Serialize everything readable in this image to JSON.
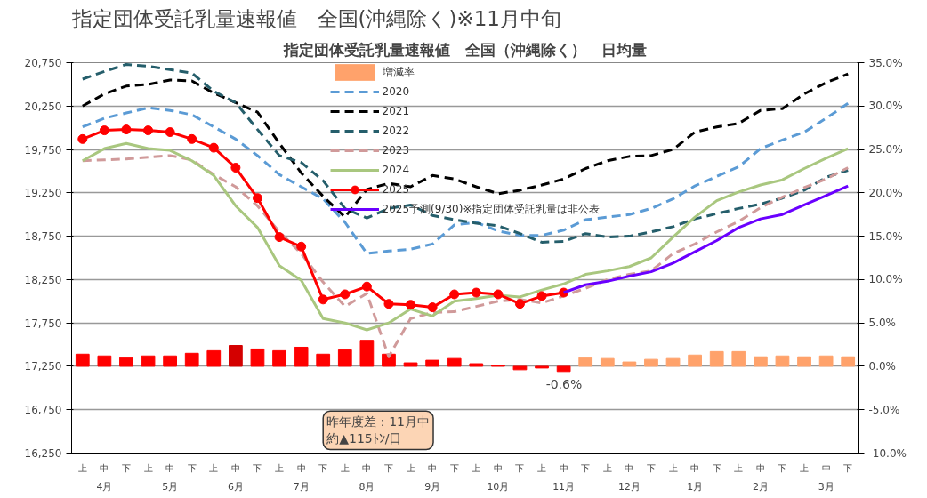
{
  "chart_data": {
    "type": "line",
    "title": "指定団体受託乳量速報値　全国(沖縄除く)※11月中旬",
    "subtitle": "指定団体受託乳量速報値　全国（沖縄除く）　日均量",
    "categories": [
      "上",
      "中",
      "下",
      "上",
      "中",
      "下",
      "上",
      "中",
      "下",
      "上",
      "中",
      "下",
      "上",
      "中",
      "下",
      "上",
      "中",
      "下",
      "上",
      "中",
      "下",
      "上",
      "中",
      "下",
      "上",
      "中",
      "下",
      "上",
      "中",
      "下",
      "上",
      "中",
      "下",
      "上",
      "中",
      "下"
    ],
    "ylim": [
      16250,
      20750
    ],
    "yticks": [
      {
        "value": 16250,
        "label": "16,250"
      },
      {
        "value": 16750,
        "label": "16,750"
      },
      {
        "value": 17250,
        "label": "17,250"
      },
      {
        "value": 17750,
        "label": "17,750"
      },
      {
        "value": 18250,
        "label": "18,250"
      },
      {
        "value": 18750,
        "label": "18,750"
      },
      {
        "value": 19250,
        "label": "19,250"
      },
      {
        "value": 19750,
        "label": "19,750"
      },
      {
        "value": 20250,
        "label": "20,250"
      },
      {
        "value": 20750,
        "label": "20,750"
      }
    ],
    "y2lim": [
      -10,
      35
    ],
    "y2ticks": [
      {
        "value": -10,
        "label": "-10.0%"
      },
      {
        "value": -5,
        "label": "-5.0%"
      },
      {
        "value": 0,
        "label": "0.0%"
      },
      {
        "value": 5,
        "label": "5.0%"
      },
      {
        "value": 10,
        "label": "10.0%"
      },
      {
        "value": 15,
        "label": "15.0%"
      },
      {
        "value": 20,
        "label": "20.0%"
      },
      {
        "value": 25,
        "label": "25.0%"
      },
      {
        "value": 30,
        "label": "30.0%"
      },
      {
        "value": 35,
        "label": "35.0%"
      }
    ],
    "grid": "y",
    "legend": "top",
    "series": [
      {
        "name": "増減率",
        "type": "bar",
        "axis": "y2",
        "color": "#ffa26b",
        "colors": [
          "#ff0000",
          "#ff0000",
          "#ff0000",
          "#ff0000",
          "#ff0000",
          "#ff0000",
          "#ff0000",
          "#d40000",
          "#ff0000",
          "#ff0000",
          "#ff0000",
          "#ff0000",
          "#ff0000",
          "#ff0000",
          "#ff0000",
          "#ff0000",
          "#ff0000",
          "#ff0000",
          "#ff0000",
          "#ff0000",
          "#ff0000",
          "#ff0000",
          "#ff0000",
          "#ffa26b",
          "#ffa26b",
          "#ffa26b",
          "#ffa26b",
          "#ffa26b",
          "#ffa26b",
          "#ffa26b",
          "#ffa26b",
          "#ffa26b",
          "#ffa26b",
          "#ffa26b",
          "#ffa26b",
          "#ffa26b"
        ],
        "values": [
          1.4,
          1.2,
          1.0,
          1.2,
          1.2,
          1.5,
          1.8,
          2.4,
          2.0,
          1.8,
          2.2,
          1.4,
          1.9,
          3.0,
          1.4,
          0.4,
          0.7,
          0.9,
          0.3,
          0.1,
          -0.4,
          -0.2,
          -0.6,
          1.0,
          0.9,
          0.5,
          0.8,
          0.9,
          1.3,
          1.7,
          1.7,
          1.1,
          1.2,
          1.1,
          1.2,
          1.1
        ]
      },
      {
        "name": "2020",
        "line_style": "dashed",
        "color": "#5b9bd5",
        "values": [
          20010,
          20110,
          20170,
          20230,
          20200,
          20150,
          20010,
          19870,
          19680,
          19460,
          19320,
          19180,
          18910,
          18550,
          18580,
          18600,
          18660,
          18880,
          18910,
          18810,
          18760,
          18760,
          18820,
          18940,
          18970,
          19000,
          19070,
          19180,
          19330,
          19440,
          19550,
          19760,
          19860,
          19950,
          20110,
          20280
        ]
      },
      {
        "name": "2021",
        "line_style": "dashed",
        "color": "#000000",
        "values": [
          20250,
          20390,
          20480,
          20500,
          20550,
          20540,
          20400,
          20290,
          20180,
          19820,
          19480,
          19210,
          18970,
          19290,
          19360,
          19320,
          19450,
          19410,
          19320,
          19240,
          19280,
          19340,
          19410,
          19530,
          19620,
          19670,
          19680,
          19750,
          19950,
          20010,
          20050,
          20200,
          20220,
          20390,
          20520,
          20620
        ]
      },
      {
        "name": "2022",
        "line_style": "dashed",
        "color": "#255e6b",
        "values": [
          20560,
          20650,
          20730,
          20710,
          20670,
          20630,
          20420,
          20290,
          19980,
          19680,
          19600,
          19390,
          19070,
          18960,
          19070,
          19110,
          18990,
          18940,
          18900,
          18870,
          18780,
          18680,
          18690,
          18780,
          18740,
          18750,
          18800,
          18860,
          18950,
          19010,
          19070,
          19120,
          19190,
          19280,
          19430,
          19510
        ]
      },
      {
        "name": "2023",
        "line_style": "dashed",
        "color": "#d09a9a",
        "values": [
          19620,
          19630,
          19640,
          19660,
          19680,
          19630,
          19460,
          19320,
          19100,
          18800,
          18550,
          18220,
          17940,
          18090,
          17360,
          17800,
          17870,
          17880,
          17940,
          18000,
          18020,
          17980,
          18060,
          18150,
          18250,
          18310,
          18350,
          18550,
          18660,
          18800,
          18920,
          19080,
          19200,
          19310,
          19410,
          19540
        ]
      },
      {
        "name": "2024",
        "line_style": "solid",
        "color": "#a9c77f",
        "values": [
          19620,
          19760,
          19820,
          19760,
          19740,
          19620,
          19450,
          19100,
          18850,
          18410,
          18240,
          17800,
          17750,
          17670,
          17750,
          17910,
          17830,
          18000,
          18030,
          18070,
          18050,
          18130,
          18200,
          18310,
          18350,
          18400,
          18500,
          18740,
          18970,
          19160,
          19260,
          19340,
          19400,
          19530,
          19650,
          19760
        ]
      },
      {
        "name": "2025",
        "line_style": "solid",
        "marker": "circle",
        "color": "#ff0000",
        "values": [
          19870,
          19970,
          19980,
          19970,
          19950,
          19870,
          19770,
          19540,
          19190,
          18740,
          18630,
          18020,
          18080,
          18170,
          17970,
          17960,
          17930,
          18080,
          18100,
          18080,
          17970,
          18060,
          18100,
          null,
          null,
          null,
          null,
          null,
          null,
          null,
          null,
          null,
          null,
          null,
          null,
          null
        ]
      },
      {
        "name": "2025予測(9/30)※指定団体受託乳量は非公表",
        "line_style": "solid",
        "color": "#6a00ff",
        "values": [
          null,
          null,
          null,
          null,
          null,
          null,
          null,
          null,
          null,
          null,
          null,
          null,
          null,
          null,
          null,
          null,
          null,
          null,
          null,
          null,
          null,
          null,
          18100,
          18190,
          18230,
          18290,
          18340,
          18440,
          18570,
          18700,
          18850,
          18950,
          19000,
          19110,
          19220,
          19330
        ]
      }
    ],
    "annotations": [
      "-0.6%",
      "昨年度差：11月中約▲115ﾄﾝ/日",
      "4月",
      "5月",
      "6月",
      "7月",
      "8月",
      "9月",
      "10月",
      "11月",
      "12月",
      "1月",
      "2月",
      "3月"
    ]
  }
}
